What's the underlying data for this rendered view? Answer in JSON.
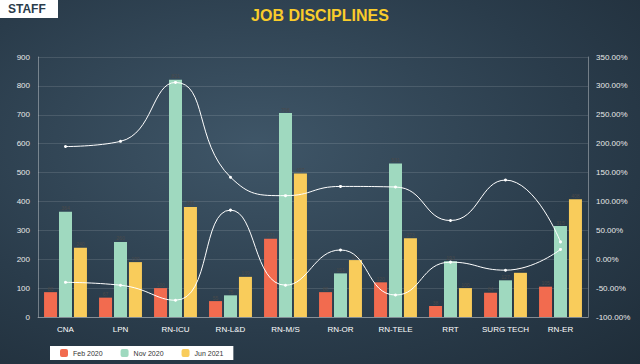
{
  "chart_data": {
    "type": "bar",
    "title": "JOB DISCIPLINES",
    "logo_text": "STAFF",
    "categories": [
      "CNA",
      "LPN",
      "RN-ICU",
      "RN-L&D",
      "RN-M/S",
      "RN-OR",
      "RN-TELE",
      "RRT",
      "SURG TECH",
      "RN-ER"
    ],
    "series": [
      {
        "name": "Feb 2020",
        "color": "#f26b4f",
        "values": [
          86,
          67,
          100,
          55,
          271,
          86,
          120,
          38,
          84,
          105
        ]
      },
      {
        "name": "Nov 2020",
        "color": "#9fd9bf",
        "values": [
          364,
          260,
          821,
          75,
          706,
          151,
          531,
          193,
          127,
          315
        ]
      },
      {
        "name": "Jun 2021",
        "color": "#f9cc5b",
        "values": [
          240,
          190,
          381,
          139,
          497,
          197,
          273,
          100,
          153,
          408
        ]
      },
      {
        "type": "line",
        "axis": "y2",
        "color": "#ffffff",
        "values": [
          195,
          204,
          306,
          142,
          110,
          126,
          125,
          67,
          137,
          30
        ]
      },
      {
        "type": "line",
        "axis": "y2",
        "color": "#ffffff",
        "values": [
          -40,
          -45,
          -71,
          85,
          -45,
          16,
          -62,
          -5,
          -19,
          17
        ]
      }
    ],
    "ylim": [
      0,
      900
    ],
    "yticks": [
      0,
      100,
      200,
      300,
      400,
      500,
      600,
      700,
      800,
      900
    ],
    "y2lim": [
      -100,
      350
    ],
    "y2ticks": [
      {
        "value": -100,
        "label": "-100.00%"
      },
      {
        "value": -50,
        "label": "-50.00%"
      },
      {
        "value": 0,
        "label": "0.00%"
      },
      {
        "value": 50,
        "label": "50.00%"
      },
      {
        "value": 100,
        "label": "100.00%"
      },
      {
        "value": 150,
        "label": "150.00%"
      },
      {
        "value": 200,
        "label": "200.00%"
      },
      {
        "value": 250,
        "label": "250.00%"
      },
      {
        "value": 300,
        "label": "300.00%"
      },
      {
        "value": 350,
        "label": "350.00%"
      }
    ],
    "grid": true,
    "legend": "bottom-left",
    "data_labels": true
  }
}
